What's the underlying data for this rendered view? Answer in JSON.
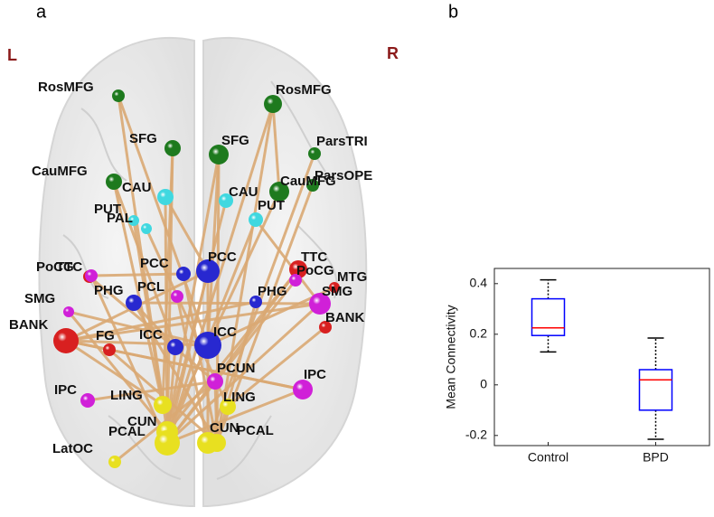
{
  "panel_a": {
    "panel_label": "a",
    "left_label": "L",
    "right_label": "R",
    "nodes": [
      {
        "label": "RosMFG"
      },
      {
        "label": "RosMFG"
      },
      {
        "label": "SFG"
      },
      {
        "label": "SFG"
      },
      {
        "label": "ParsTRI"
      },
      {
        "label": "CauMFG"
      },
      {
        "label": "CauMFG"
      },
      {
        "label": "ParsOPE"
      },
      {
        "label": "CAU"
      },
      {
        "label": "CAU"
      },
      {
        "label": "PUT"
      },
      {
        "label": "PUT"
      },
      {
        "label": "PAL"
      },
      {
        "label": "PCC"
      },
      {
        "label": "PCC"
      },
      {
        "label": "TTC"
      },
      {
        "label": "PoCG"
      },
      {
        "label": "MTG"
      },
      {
        "label": "TTC"
      },
      {
        "label": "PoCG"
      },
      {
        "label": "PCL"
      },
      {
        "label": "PHG"
      },
      {
        "label": "PHG"
      },
      {
        "label": "SMG"
      },
      {
        "label": "SMG"
      },
      {
        "label": "BANK"
      },
      {
        "label": "BANK"
      },
      {
        "label": "FG"
      },
      {
        "label": "ICC"
      },
      {
        "label": "ICC"
      },
      {
        "label": "PCUN"
      },
      {
        "label": "IPC"
      },
      {
        "label": "IPC"
      },
      {
        "label": "LING"
      },
      {
        "label": "LING"
      },
      {
        "label": "CUN"
      },
      {
        "label": "CUN"
      },
      {
        "label": "PCAL"
      },
      {
        "label": "PCAL"
      },
      {
        "label": "LatOC"
      }
    ]
  },
  "chart_data": {
    "type": "box",
    "panel_label": "b",
    "ylabel": "Mean Connectivity",
    "categories": [
      "Control",
      "BPD"
    ],
    "boxes": [
      {
        "min": 0.13,
        "q1": 0.195,
        "median": 0.225,
        "q3": 0.34,
        "max": 0.415
      },
      {
        "min": -0.215,
        "q1": -0.1,
        "median": 0.02,
        "q3": 0.06,
        "max": 0.185
      }
    ],
    "box_color": "#0000ff",
    "median_color": "#ff0000",
    "whisker_color": "#000000",
    "ylim": [
      -0.24,
      0.46
    ],
    "yticks": [
      -0.2,
      0,
      0.2,
      0.4
    ]
  }
}
